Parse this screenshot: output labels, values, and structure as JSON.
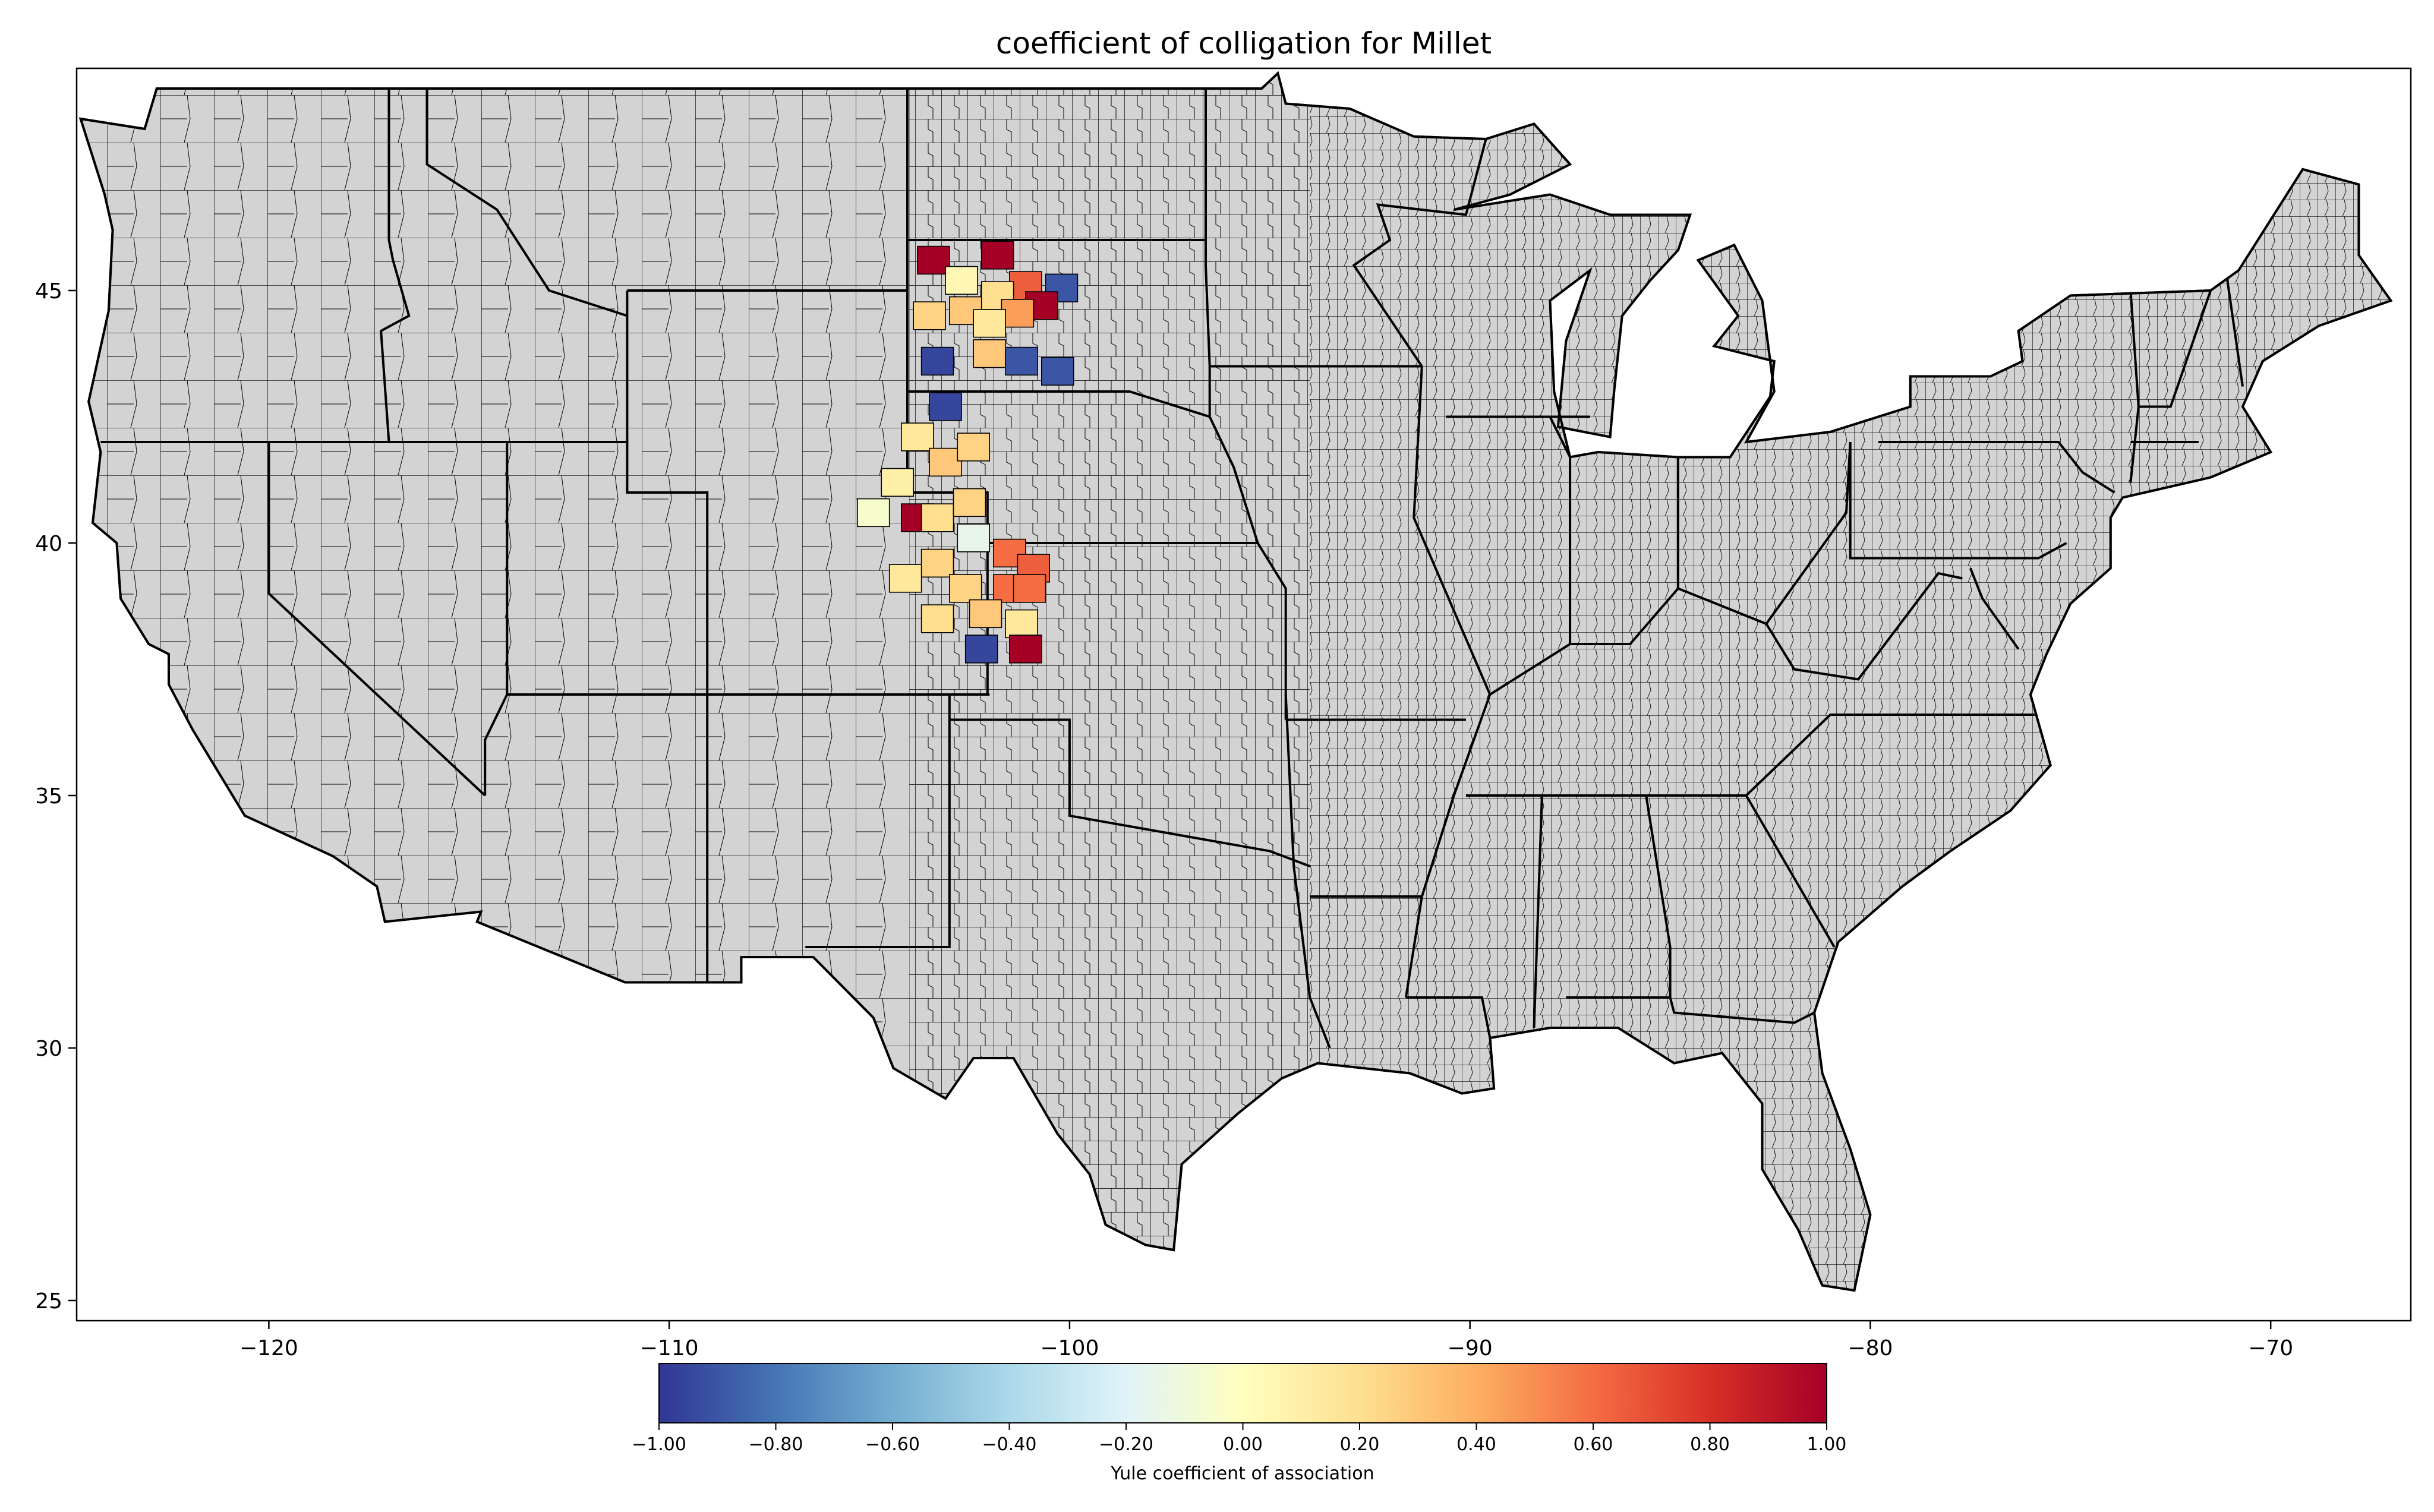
{
  "title": "coefficient of colligation for Millet",
  "x_axis": {
    "ticks": [
      -120,
      -110,
      -100,
      -90,
      -80,
      -70
    ],
    "tick_labels": [
      "−120",
      "−110",
      "−100",
      "−90",
      "−80",
      "−70"
    ],
    "range": [
      -124.8,
      -66.5
    ]
  },
  "y_axis": {
    "ticks": [
      25,
      30,
      35,
      40,
      45
    ],
    "tick_labels": [
      "25",
      "30",
      "35",
      "40",
      "45"
    ],
    "range": [
      24.6,
      49.4
    ]
  },
  "colorbar": {
    "label": "Yule coefficient of association",
    "range": [
      -1.0,
      1.0
    ],
    "ticks": [
      -1.0,
      -0.8,
      -0.6,
      -0.4,
      -0.2,
      0.0,
      0.2,
      0.4,
      0.6,
      0.8,
      1.0
    ],
    "tick_labels": [
      "−1.00",
      "−0.80",
      "−0.60",
      "−0.40",
      "−0.20",
      "0.00",
      "0.20",
      "0.40",
      "0.60",
      "0.80",
      "1.00"
    ],
    "colormap": "RdYlBu_r",
    "stops": [
      "#313695",
      "#4575b4",
      "#74add1",
      "#abd9e9",
      "#e0f3f8",
      "#ffffbf",
      "#fee090",
      "#fdae61",
      "#f46d43",
      "#d73027",
      "#a50026"
    ]
  },
  "colors": {
    "land": "#d3d3d3",
    "no_data": "#d3d3d3",
    "border": "#000000"
  },
  "chart_data": {
    "type": "choropleth",
    "region": "Contiguous United States (counties)",
    "value_name": "Yule coefficient of association",
    "highlighted_counties": [
      {
        "lon": -103.4,
        "lat": 45.6,
        "value": 1.0
      },
      {
        "lon": -101.8,
        "lat": 45.7,
        "value": 1.0
      },
      {
        "lon": -102.7,
        "lat": 45.2,
        "value": 0.05
      },
      {
        "lon": -101.1,
        "lat": 45.1,
        "value": 0.65
      },
      {
        "lon": -100.2,
        "lat": 45.05,
        "value": -0.9
      },
      {
        "lon": -100.7,
        "lat": 44.7,
        "value": 1.0
      },
      {
        "lon": -101.8,
        "lat": 44.9,
        "value": 0.2
      },
      {
        "lon": -103.5,
        "lat": 44.5,
        "value": 0.25
      },
      {
        "lon": -102.6,
        "lat": 44.6,
        "value": 0.3
      },
      {
        "lon": -101.3,
        "lat": 44.55,
        "value": 0.45
      },
      {
        "lon": -102.0,
        "lat": 44.35,
        "value": 0.15
      },
      {
        "lon": -103.3,
        "lat": 43.6,
        "value": -0.95
      },
      {
        "lon": -102.0,
        "lat": 43.75,
        "value": 0.3
      },
      {
        "lon": -101.2,
        "lat": 43.6,
        "value": -0.9
      },
      {
        "lon": -100.3,
        "lat": 43.4,
        "value": -0.9
      },
      {
        "lon": -103.1,
        "lat": 42.7,
        "value": -0.95
      },
      {
        "lon": -103.8,
        "lat": 42.1,
        "value": 0.15
      },
      {
        "lon": -103.1,
        "lat": 41.6,
        "value": 0.3
      },
      {
        "lon": -102.4,
        "lat": 41.9,
        "value": 0.25
      },
      {
        "lon": -104.3,
        "lat": 41.2,
        "value": 0.1
      },
      {
        "lon": -104.9,
        "lat": 40.6,
        "value": -0.05
      },
      {
        "lon": -103.8,
        "lat": 40.5,
        "value": 1.0
      },
      {
        "lon": -103.3,
        "lat": 40.5,
        "value": 0.2
      },
      {
        "lon": -102.4,
        "lat": 40.1,
        "value": -0.15
      },
      {
        "lon": -102.5,
        "lat": 40.8,
        "value": 0.25
      },
      {
        "lon": -101.5,
        "lat": 39.8,
        "value": 0.6
      },
      {
        "lon": -100.9,
        "lat": 39.5,
        "value": 0.65
      },
      {
        "lon": -103.3,
        "lat": 39.6,
        "value": 0.25
      },
      {
        "lon": -104.1,
        "lat": 39.3,
        "value": 0.15
      },
      {
        "lon": -102.6,
        "lat": 39.1,
        "value": 0.25
      },
      {
        "lon": -101.5,
        "lat": 39.1,
        "value": 0.6
      },
      {
        "lon": -101.0,
        "lat": 39.1,
        "value": 0.6
      },
      {
        "lon": -103.3,
        "lat": 38.5,
        "value": 0.2
      },
      {
        "lon": -102.1,
        "lat": 38.6,
        "value": 0.3
      },
      {
        "lon": -101.2,
        "lat": 38.4,
        "value": 0.15
      },
      {
        "lon": -102.2,
        "lat": 37.9,
        "value": -0.95
      },
      {
        "lon": -101.1,
        "lat": 37.9,
        "value": 1.0
      }
    ]
  }
}
